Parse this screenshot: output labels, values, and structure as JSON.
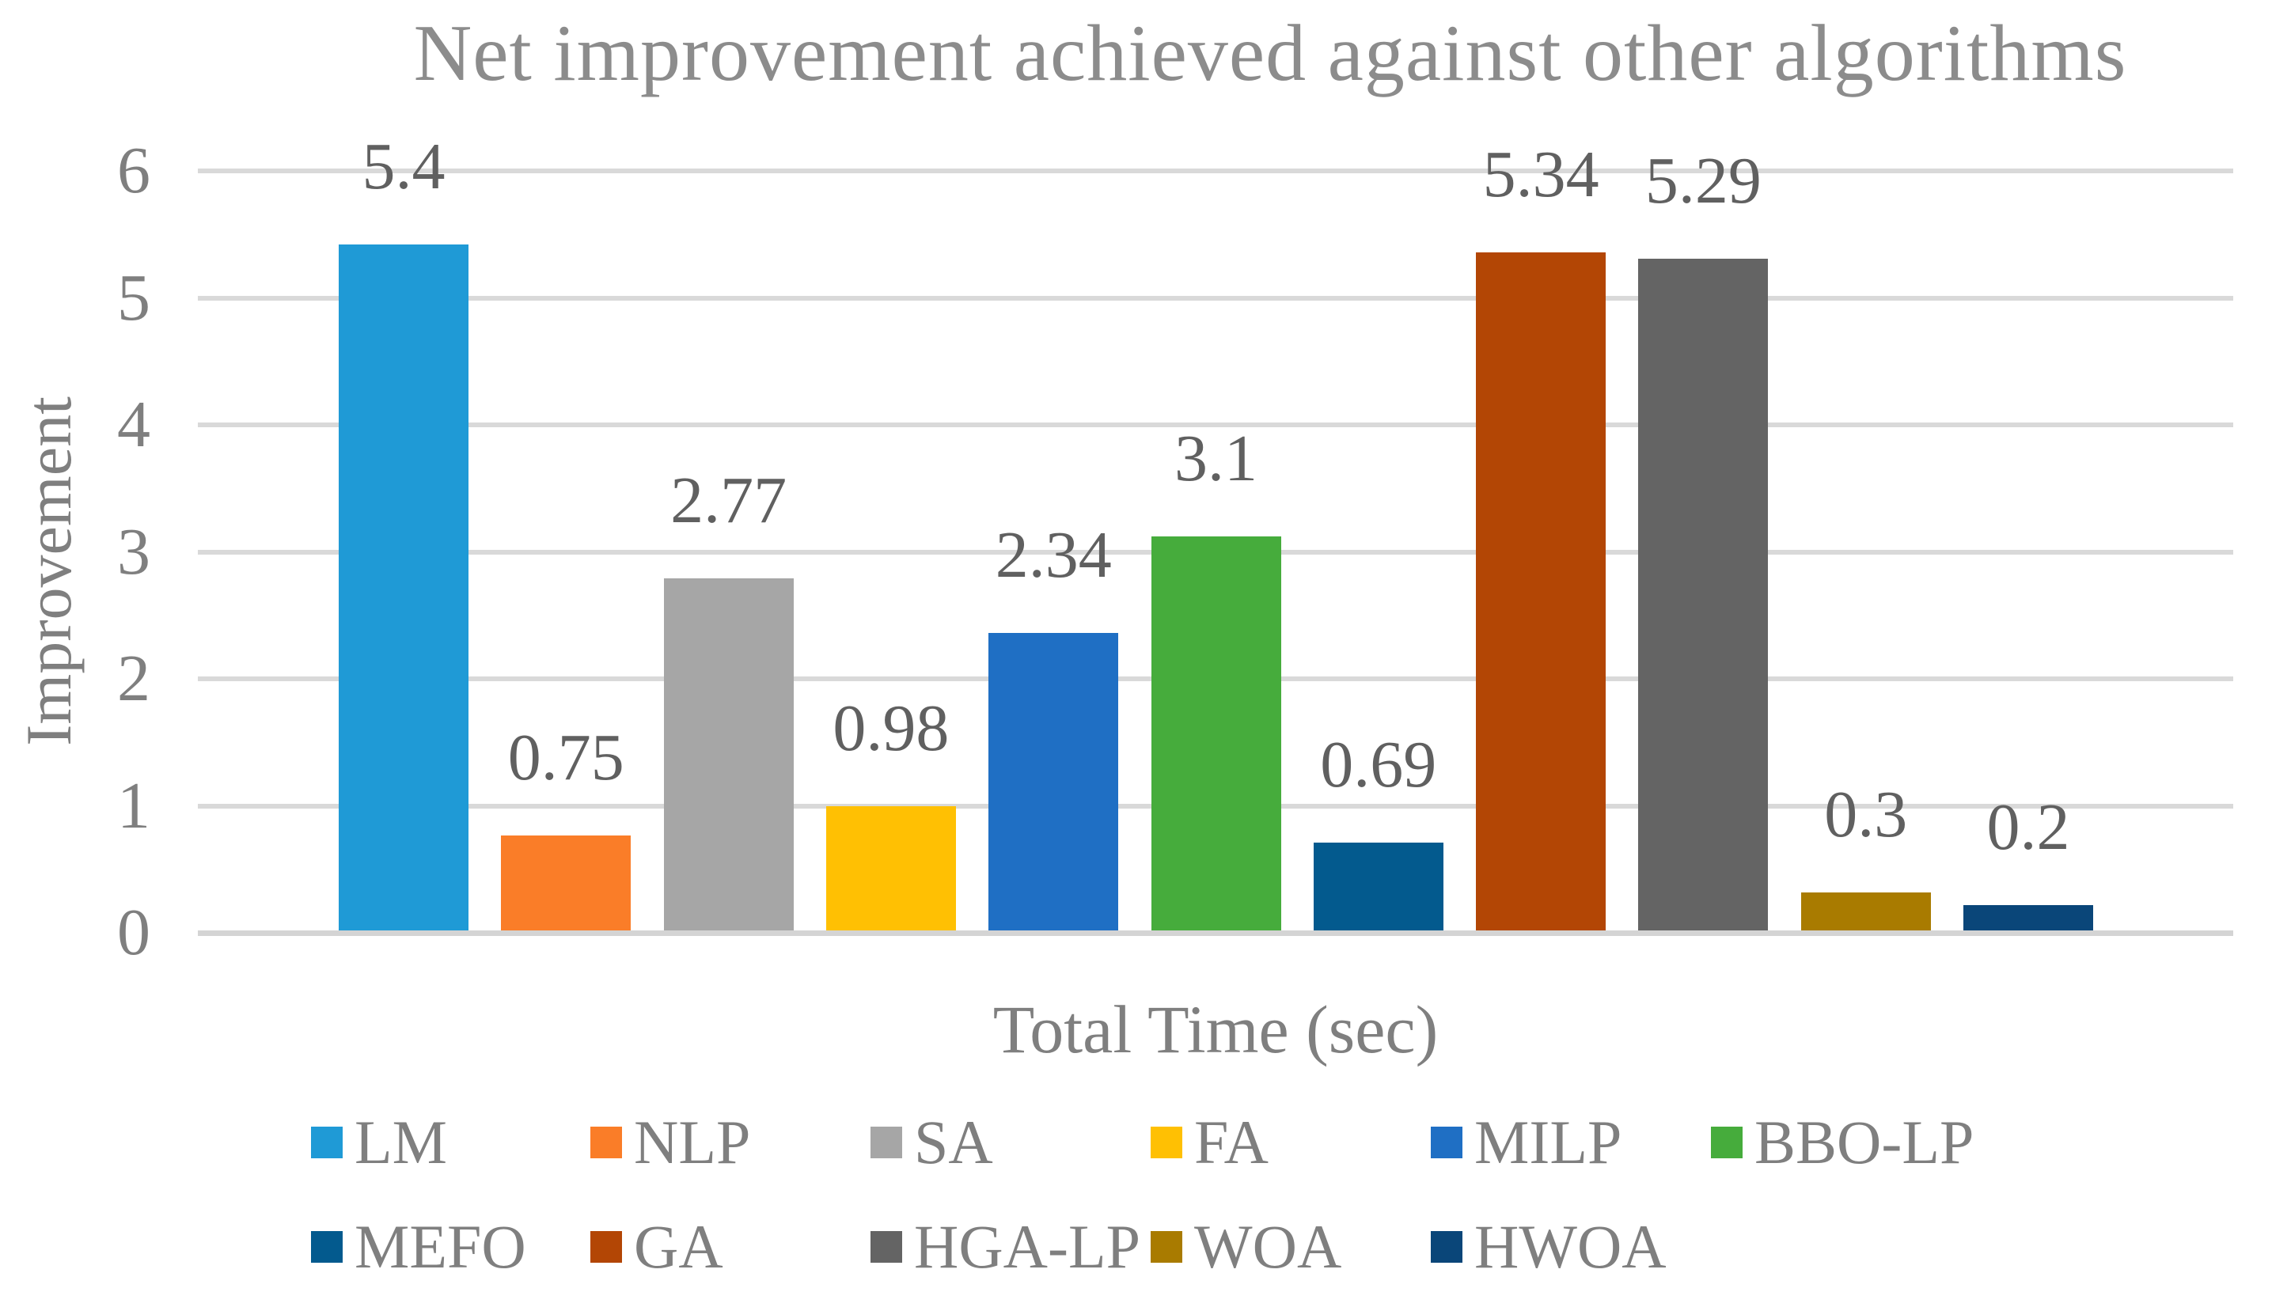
{
  "chart_data": {
    "type": "bar",
    "title": "Net improvement achieved against other algorithms",
    "xlabel": "Total Time (sec)",
    "ylabel": "Improvement",
    "ylim": [
      0,
      6
    ],
    "yticks": [
      "0",
      "1",
      "2",
      "3",
      "4",
      "5",
      "6"
    ],
    "grid": "horizontal",
    "legend_position": "bottom",
    "categories": [
      "LM",
      "NLP",
      "SA",
      "FA",
      "MILP",
      "BBO-LP",
      "MEFO",
      "GA",
      "HGA-LP",
      "WOA",
      "HWOA"
    ],
    "values": [
      5.4,
      0.75,
      2.77,
      0.98,
      2.34,
      3.1,
      0.69,
      5.34,
      5.29,
      0.3,
      0.2
    ],
    "value_labels": [
      "5.4",
      "0.75",
      "2.77",
      "0.98",
      "2.34",
      "3.1",
      "0.69",
      "5.34",
      "5.29",
      "0.3",
      "0.2"
    ],
    "bar_colors": [
      "#1F9AD6",
      "#FA7D28",
      "#A6A6A6",
      "#FFC003",
      "#1F6FC4",
      "#46AC3C",
      "#035A8E",
      "#B34605",
      "#646464",
      "#A97B00",
      "#0A4679"
    ],
    "grid_color": "#D9D9D9",
    "axis_color": "#D4D4D4",
    "title_color": "#8C8C8C",
    "text_color": "#7F7F7F",
    "value_label_color": "#606060"
  }
}
